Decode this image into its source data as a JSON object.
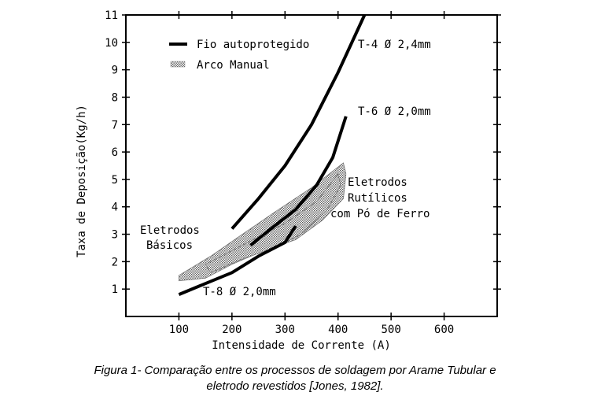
{
  "chart_data": {
    "type": "line",
    "xlabel": "Intensidade de Corrente (A)",
    "ylabel": "Taxa de Deposição(Kg/h)",
    "xlim": [
      0,
      700
    ],
    "ylim": [
      0,
      11
    ],
    "x_ticks": [
      "100",
      "200",
      "300",
      "400",
      "500",
      "600"
    ],
    "y_ticks": [
      "1",
      "2",
      "3",
      "4",
      "5",
      "6",
      "7",
      "8",
      "9",
      "10",
      "11"
    ],
    "grid": false,
    "legend": {
      "placement": "top-left",
      "items": [
        {
          "label": "Fio autoprotegido",
          "style": "solid-thick"
        },
        {
          "label": "Arco Manual",
          "style": "hatched-band"
        }
      ]
    },
    "series": [
      {
        "name": "T-4 Ø 2,4mm",
        "kind": "line",
        "points": [
          [
            200,
            3.2
          ],
          [
            250,
            4.3
          ],
          [
            300,
            5.5
          ],
          [
            350,
            7.0
          ],
          [
            400,
            8.9
          ],
          [
            450,
            11.0
          ]
        ]
      },
      {
        "name": "T-6 Ø 2,0mm",
        "kind": "line",
        "points": [
          [
            235,
            2.6
          ],
          [
            280,
            3.3
          ],
          [
            320,
            3.9
          ],
          [
            360,
            4.8
          ],
          [
            390,
            5.8
          ],
          [
            415,
            7.3
          ]
        ]
      },
      {
        "name": "T-8 Ø 2,0mm",
        "kind": "line",
        "points": [
          [
            100,
            0.8
          ],
          [
            150,
            1.2
          ],
          [
            200,
            1.6
          ],
          [
            250,
            2.2
          ],
          [
            300,
            2.7
          ],
          [
            320,
            3.3
          ]
        ]
      },
      {
        "name": "Eletrodos Básicos",
        "kind": "band",
        "points": [
          [
            100,
            1.5
          ],
          [
            160,
            2.2
          ],
          [
            220,
            3.0
          ],
          [
            280,
            3.8
          ],
          [
            350,
            4.7
          ],
          [
            410,
            5.6
          ],
          [
            415,
            5.2
          ],
          [
            410,
            4.3
          ],
          [
            370,
            3.5
          ],
          [
            320,
            2.8
          ],
          [
            260,
            2.4
          ],
          [
            200,
            1.9
          ],
          [
            150,
            1.4
          ],
          [
            100,
            1.3
          ]
        ]
      },
      {
        "name": "Eletrodos Rutílicos com Pó de Ferro",
        "kind": "band",
        "points": [
          [
            150,
            1.9
          ],
          [
            220,
            2.6
          ],
          [
            300,
            3.4
          ],
          [
            360,
            4.2
          ],
          [
            400,
            5.2
          ],
          [
            405,
            4.8
          ],
          [
            380,
            3.9
          ],
          [
            330,
            3.0
          ],
          [
            280,
            2.5
          ],
          [
            220,
            2.1
          ],
          [
            160,
            1.6
          ]
        ]
      }
    ],
    "annotations": [
      {
        "text": "Fio autoprotegido"
      },
      {
        "text": "Arco Manual"
      },
      {
        "text": "T-4 Ø 2,4mm"
      },
      {
        "text": "T-6 Ø 2,0mm"
      },
      {
        "text": "T-8 Ø 2,0mm"
      },
      {
        "text": "Eletrodos"
      },
      {
        "text": "Básicos"
      },
      {
        "text": "Eletrodos"
      },
      {
        "text": "Rutílicos"
      },
      {
        "text": "com Pó de Ferro"
      }
    ]
  },
  "caption": {
    "line1": "Figura 1- Comparação entre os processos de soldagem por Arame Tubular e",
    "line2": "eletrodo revestidos [Jones, 1982]."
  }
}
